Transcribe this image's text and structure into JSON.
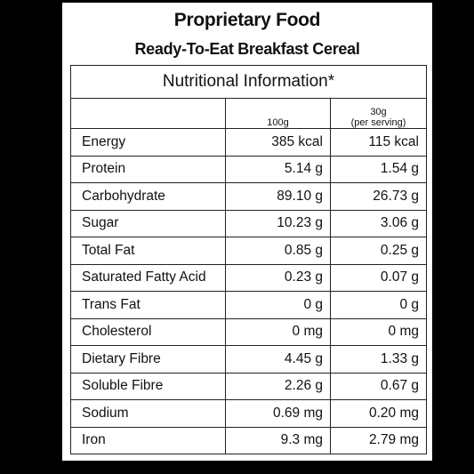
{
  "header": {
    "title": "Proprietary Food",
    "subtitle": "Ready-To-Eat Breakfast Cereal"
  },
  "table": {
    "caption": "Nutritional Information*",
    "columns": {
      "per100": "100g",
      "per_serving_line1": "30g",
      "per_serving_line2": "(per serving)"
    },
    "rows": [
      {
        "name": "Energy",
        "per100": "385 kcal",
        "serving": "115 kcal"
      },
      {
        "name": "Protein",
        "per100": "5.14 g",
        "serving": "1.54 g"
      },
      {
        "name": "Carbohydrate",
        "per100": "89.10 g",
        "serving": "26.73 g"
      },
      {
        "name": "Sugar",
        "per100": "10.23 g",
        "serving": "3.06 g"
      },
      {
        "name": "Total Fat",
        "per100": "0.85 g",
        "serving": "0.25 g"
      },
      {
        "name": "Saturated Fatty Acid",
        "per100": "0.23 g",
        "serving": "0.07 g"
      },
      {
        "name": "Trans Fat",
        "per100": "0 g",
        "serving": "0 g"
      },
      {
        "name": "Cholesterol",
        "per100": "0 mg",
        "serving": "0 mg"
      },
      {
        "name": "Dietary Fibre",
        "per100": "4.45 g",
        "serving": "1.33 g"
      },
      {
        "name": "Soluble Fibre",
        "per100": "2.26 g",
        "serving": "0.67 g"
      },
      {
        "name": "Sodium",
        "per100": "0.69 mg",
        "serving": "0.20 mg"
      },
      {
        "name": "Iron",
        "per100": "9.3 mg",
        "serving": "2.79 mg"
      }
    ]
  }
}
